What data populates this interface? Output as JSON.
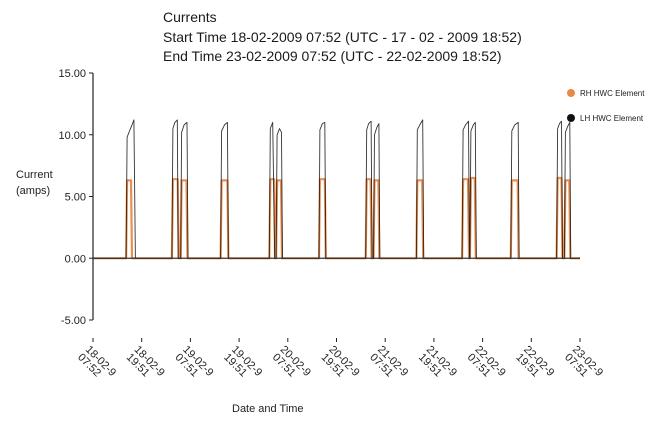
{
  "chart_data": {
    "type": "line",
    "title": "Currents",
    "subtitle_lines": [
      "Start Time 18-02-2009 07:52 (UTC - 17 - 02 - 2009 18:52)",
      "End Time 23-02-2009 07:52 (UTC - 22-02-2009 18:52)"
    ],
    "ylabel_lines": [
      "Current",
      "(amps)"
    ],
    "xlabel": "Date and Time",
    "ylim": [
      -5,
      15
    ],
    "yticks": [
      {
        "value": 15,
        "label": "15.00"
      },
      {
        "value": 10,
        "label": "10.00"
      },
      {
        "value": 5,
        "label": "5.00"
      },
      {
        "value": 0,
        "label": "0.00"
      },
      {
        "value": -5,
        "label": "-5.00"
      }
    ],
    "xlim": [
      0,
      10
    ],
    "xticks": [
      {
        "value": 0,
        "label_lines": [
          "18-02-9",
          "07:52"
        ]
      },
      {
        "value": 1,
        "label_lines": [
          "18-02-9",
          "19:51"
        ]
      },
      {
        "value": 2,
        "label_lines": [
          "19-02-9",
          "07:51"
        ]
      },
      {
        "value": 3,
        "label_lines": [
          "19-02-9",
          "19:51"
        ]
      },
      {
        "value": 4,
        "label_lines": [
          "20-02-9",
          "07:51"
        ]
      },
      {
        "value": 5,
        "label_lines": [
          "20-02-9",
          "19:51"
        ]
      },
      {
        "value": 6,
        "label_lines": [
          "21-02-9",
          "07:51"
        ]
      },
      {
        "value": 7,
        "label_lines": [
          "21-02-9",
          "19:51"
        ]
      },
      {
        "value": 8,
        "label_lines": [
          "22-02-9",
          "07:51"
        ]
      },
      {
        "value": 9,
        "label_lines": [
          "22-02-9",
          "19:51"
        ]
      },
      {
        "value": 10,
        "label_lines": [
          "23-02-9",
          "07:51"
        ]
      }
    ],
    "legend_position": "top-right",
    "series": [
      {
        "name": "RH HWC Element",
        "color": "#e8894a",
        "points": [
          [
            0,
            0
          ],
          [
            0.68,
            0
          ],
          [
            0.7,
            6.3
          ],
          [
            0.78,
            6.3
          ],
          [
            0.8,
            0
          ],
          [
            1.62,
            0
          ],
          [
            1.64,
            6.4
          ],
          [
            1.74,
            6.4
          ],
          [
            1.76,
            0
          ],
          [
            1.8,
            0
          ],
          [
            1.82,
            6.3
          ],
          [
            1.92,
            6.3
          ],
          [
            1.94,
            0
          ],
          [
            2.62,
            0
          ],
          [
            2.64,
            6.3
          ],
          [
            2.76,
            6.3
          ],
          [
            2.78,
            0
          ],
          [
            3.62,
            0
          ],
          [
            3.64,
            6.4
          ],
          [
            3.72,
            6.4
          ],
          [
            3.74,
            0
          ],
          [
            3.76,
            0
          ],
          [
            3.78,
            6.3
          ],
          [
            3.86,
            6.3
          ],
          [
            3.88,
            0
          ],
          [
            4.64,
            0
          ],
          [
            4.66,
            6.4
          ],
          [
            4.76,
            6.4
          ],
          [
            4.78,
            0
          ],
          [
            5.6,
            0
          ],
          [
            5.62,
            6.4
          ],
          [
            5.7,
            6.4
          ],
          [
            5.72,
            0
          ],
          [
            5.76,
            0
          ],
          [
            5.78,
            6.3
          ],
          [
            5.86,
            6.3
          ],
          [
            5.88,
            0
          ],
          [
            6.64,
            0
          ],
          [
            6.66,
            6.3
          ],
          [
            6.76,
            6.3
          ],
          [
            6.78,
            0
          ],
          [
            7.58,
            0
          ],
          [
            7.6,
            6.4
          ],
          [
            7.7,
            6.4
          ],
          [
            7.72,
            0
          ],
          [
            7.74,
            0
          ],
          [
            7.76,
            6.5
          ],
          [
            7.84,
            6.5
          ],
          [
            7.86,
            0
          ],
          [
            8.58,
            0
          ],
          [
            8.6,
            6.3
          ],
          [
            8.72,
            6.3
          ],
          [
            8.74,
            0
          ],
          [
            9.52,
            0
          ],
          [
            9.54,
            6.5
          ],
          [
            9.62,
            6.5
          ],
          [
            9.64,
            0
          ],
          [
            9.68,
            0
          ],
          [
            9.7,
            6.3
          ],
          [
            9.78,
            6.3
          ],
          [
            9.8,
            0
          ],
          [
            10,
            0
          ]
        ]
      },
      {
        "name": "LH HWC Element",
        "color": "#111111",
        "points": [
          [
            0,
            0
          ],
          [
            0.68,
            0
          ],
          [
            0.7,
            9.8
          ],
          [
            0.75,
            10.3
          ],
          [
            0.8,
            10.8
          ],
          [
            0.84,
            11.2
          ],
          [
            0.87,
            0
          ],
          [
            1.62,
            0
          ],
          [
            1.64,
            10.5
          ],
          [
            1.68,
            11.0
          ],
          [
            1.73,
            11.2
          ],
          [
            1.75,
            0
          ],
          [
            1.8,
            0
          ],
          [
            1.82,
            10.2
          ],
          [
            1.87,
            10.8
          ],
          [
            1.93,
            11.0
          ],
          [
            1.95,
            0
          ],
          [
            2.62,
            0
          ],
          [
            2.64,
            10.3
          ],
          [
            2.7,
            10.8
          ],
          [
            2.76,
            11.0
          ],
          [
            2.78,
            0
          ],
          [
            3.62,
            0
          ],
          [
            3.64,
            10.5
          ],
          [
            3.69,
            11.0
          ],
          [
            3.73,
            0
          ],
          [
            3.76,
            0
          ],
          [
            3.78,
            10.0
          ],
          [
            3.83,
            10.5
          ],
          [
            3.87,
            10.2
          ],
          [
            3.89,
            0
          ],
          [
            4.64,
            0
          ],
          [
            4.66,
            10.4
          ],
          [
            4.71,
            10.9
          ],
          [
            4.76,
            11.0
          ],
          [
            4.78,
            0
          ],
          [
            5.6,
            0
          ],
          [
            5.62,
            10.4
          ],
          [
            5.66,
            10.9
          ],
          [
            5.71,
            11.1
          ],
          [
            5.73,
            0
          ],
          [
            5.76,
            0
          ],
          [
            5.78,
            10.0
          ],
          [
            5.83,
            10.6
          ],
          [
            5.87,
            10.9
          ],
          [
            5.89,
            0
          ],
          [
            6.64,
            0
          ],
          [
            6.66,
            10.4
          ],
          [
            6.71,
            10.8
          ],
          [
            6.77,
            11.2
          ],
          [
            6.79,
            0
          ],
          [
            7.58,
            0
          ],
          [
            7.6,
            10.4
          ],
          [
            7.65,
            10.8
          ],
          [
            7.71,
            11.1
          ],
          [
            7.73,
            0
          ],
          [
            7.74,
            0
          ],
          [
            7.76,
            10.3
          ],
          [
            7.81,
            10.8
          ],
          [
            7.85,
            11.0
          ],
          [
            7.87,
            0
          ],
          [
            8.58,
            0
          ],
          [
            8.6,
            10.3
          ],
          [
            8.66,
            10.8
          ],
          [
            8.73,
            11.0
          ],
          [
            8.75,
            0
          ],
          [
            9.52,
            0
          ],
          [
            9.54,
            10.5
          ],
          [
            9.58,
            10.9
          ],
          [
            9.62,
            11.1
          ],
          [
            9.64,
            0
          ],
          [
            9.68,
            0
          ],
          [
            9.7,
            10.2
          ],
          [
            9.75,
            10.7
          ],
          [
            9.79,
            11.0
          ],
          [
            9.81,
            0
          ],
          [
            10,
            0
          ]
        ]
      }
    ]
  }
}
